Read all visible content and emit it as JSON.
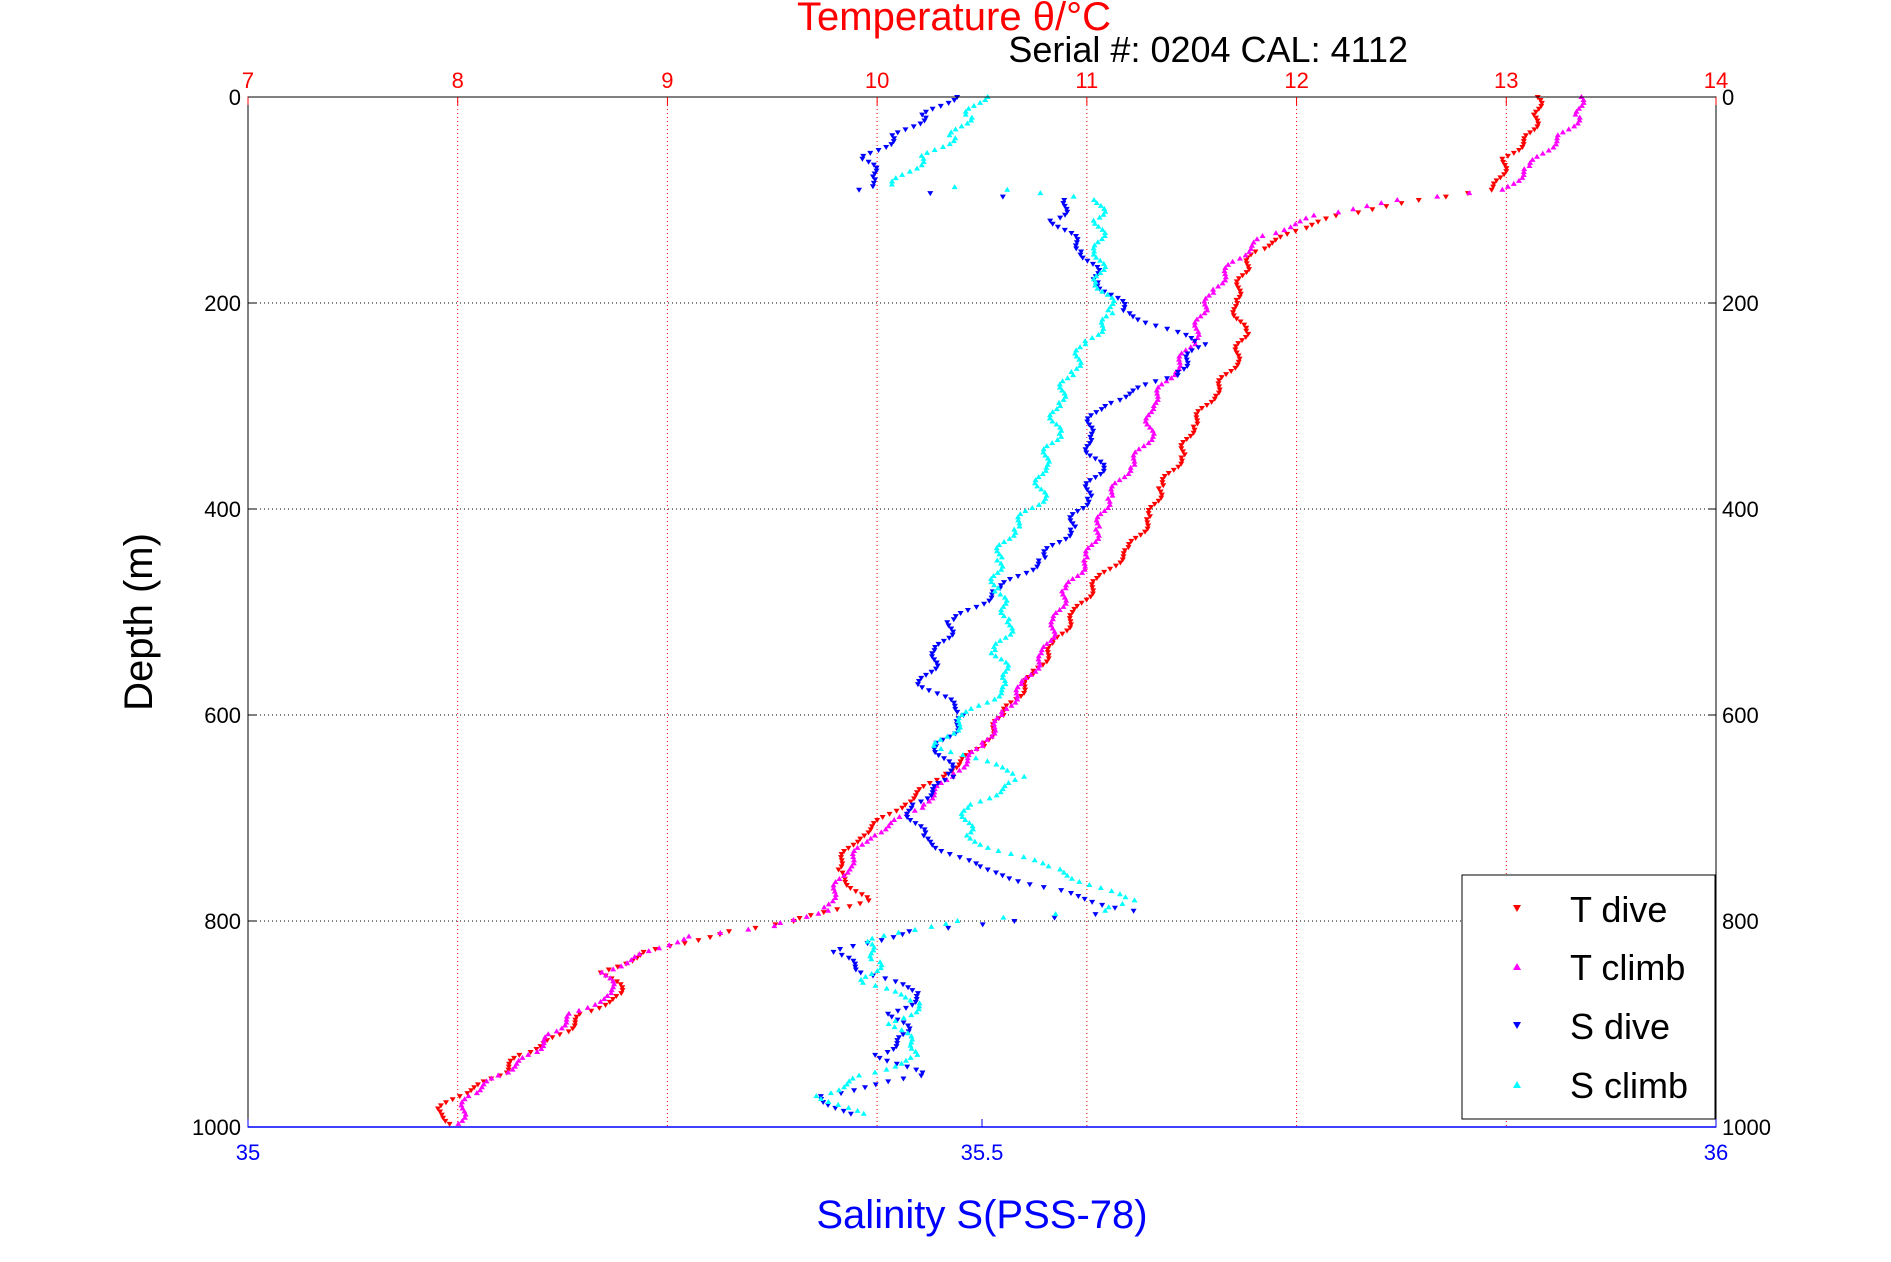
{
  "annotation": "Serial #: 0204  CAL: 4112",
  "chart_data": {
    "type": "scatter",
    "top_axis": {
      "label": "Temperature θ/°C",
      "min": 7,
      "max": 14,
      "ticks": [
        "7",
        "8",
        "9",
        "10",
        "11",
        "12",
        "13",
        "14"
      ],
      "color": "#ff0000"
    },
    "bottom_axis": {
      "label": "Salinity S(PSS-78)",
      "min": 35,
      "max": 36,
      "ticks": [
        "35",
        "35.5",
        "36"
      ],
      "color": "#0000ff"
    },
    "y_axis": {
      "label": "Depth (m)",
      "min": 0,
      "max": 1000,
      "reversed": true,
      "ticks": [
        "0",
        "200",
        "400",
        "600",
        "800",
        "1000"
      ]
    },
    "grid": true,
    "legend_position": "bottom-right",
    "series": [
      {
        "name": "T dive",
        "axis": "top",
        "color": "#ff0000",
        "marker": "triangle-down",
        "points": [
          [
            13.15,
            0
          ],
          [
            13.15,
            20
          ],
          [
            13.1,
            40
          ],
          [
            13.0,
            60
          ],
          [
            12.95,
            90
          ],
          [
            12.6,
            100
          ],
          [
            12.2,
            115
          ],
          [
            12.0,
            130
          ],
          [
            11.8,
            150
          ],
          [
            11.75,
            170
          ],
          [
            11.7,
            200
          ],
          [
            11.75,
            230
          ],
          [
            11.7,
            260
          ],
          [
            11.6,
            290
          ],
          [
            11.5,
            320
          ],
          [
            11.45,
            350
          ],
          [
            11.35,
            380
          ],
          [
            11.3,
            410
          ],
          [
            11.2,
            440
          ],
          [
            11.05,
            470
          ],
          [
            10.95,
            500
          ],
          [
            10.85,
            530
          ],
          [
            10.75,
            560
          ],
          [
            10.6,
            600
          ],
          [
            10.5,
            630
          ],
          [
            10.3,
            660
          ],
          [
            10.1,
            690
          ],
          [
            9.9,
            720
          ],
          [
            9.8,
            750
          ],
          [
            9.95,
            780
          ],
          [
            9.6,
            800
          ],
          [
            9.3,
            810
          ],
          [
            8.9,
            830
          ],
          [
            8.7,
            850
          ],
          [
            8.8,
            870
          ],
          [
            8.6,
            890
          ],
          [
            8.5,
            910
          ],
          [
            8.3,
            930
          ],
          [
            8.2,
            950
          ],
          [
            8.0,
            970
          ],
          [
            7.9,
            985
          ],
          [
            8.0,
            1000
          ]
        ]
      },
      {
        "name": "T climb",
        "axis": "top",
        "color": "#ff00ff",
        "marker": "triangle-up",
        "points": [
          [
            13.35,
            0
          ],
          [
            13.35,
            20
          ],
          [
            13.25,
            40
          ],
          [
            13.1,
            70
          ],
          [
            13.0,
            90
          ],
          [
            12.5,
            100
          ],
          [
            12.1,
            115
          ],
          [
            11.85,
            135
          ],
          [
            11.7,
            160
          ],
          [
            11.6,
            190
          ],
          [
            11.55,
            210
          ],
          [
            11.5,
            240
          ],
          [
            11.4,
            270
          ],
          [
            11.3,
            300
          ],
          [
            11.3,
            330
          ],
          [
            11.2,
            360
          ],
          [
            11.1,
            390
          ],
          [
            11.05,
            420
          ],
          [
            11.0,
            450
          ],
          [
            10.9,
            480
          ],
          [
            10.85,
            510
          ],
          [
            10.8,
            540
          ],
          [
            10.7,
            570
          ],
          [
            10.6,
            600
          ],
          [
            10.5,
            630
          ],
          [
            10.35,
            660
          ],
          [
            10.2,
            690
          ],
          [
            9.95,
            720
          ],
          [
            9.85,
            750
          ],
          [
            9.75,
            790
          ],
          [
            9.5,
            805
          ],
          [
            9.1,
            815
          ],
          [
            8.85,
            835
          ],
          [
            8.7,
            850
          ],
          [
            8.75,
            870
          ],
          [
            8.55,
            890
          ],
          [
            8.45,
            910
          ],
          [
            8.35,
            930
          ],
          [
            8.2,
            950
          ],
          [
            8.05,
            970
          ],
          [
            8.0,
            1000
          ]
        ]
      },
      {
        "name": "S dive",
        "axis": "bottom",
        "color": "#0000ff",
        "marker": "triangle-down",
        "points": [
          [
            35.48,
            0
          ],
          [
            35.46,
            20
          ],
          [
            35.44,
            40
          ],
          [
            35.42,
            60
          ],
          [
            35.43,
            80
          ],
          [
            35.42,
            90
          ],
          [
            35.56,
            100
          ],
          [
            35.55,
            120
          ],
          [
            35.57,
            150
          ],
          [
            35.58,
            180
          ],
          [
            35.6,
            210
          ],
          [
            35.65,
            240
          ],
          [
            35.63,
            270
          ],
          [
            35.58,
            300
          ],
          [
            35.57,
            330
          ],
          [
            35.58,
            360
          ],
          [
            35.57,
            390
          ],
          [
            35.56,
            420
          ],
          [
            35.54,
            450
          ],
          [
            35.51,
            480
          ],
          [
            35.48,
            510
          ],
          [
            35.47,
            540
          ],
          [
            35.46,
            570
          ],
          [
            35.49,
            600
          ],
          [
            35.47,
            630
          ],
          [
            35.48,
            660
          ],
          [
            35.45,
            690
          ],
          [
            35.46,
            720
          ],
          [
            35.5,
            750
          ],
          [
            35.55,
            770
          ],
          [
            35.6,
            790
          ],
          [
            35.52,
            800
          ],
          [
            35.45,
            810
          ],
          [
            35.4,
            830
          ],
          [
            35.42,
            850
          ],
          [
            35.46,
            870
          ],
          [
            35.44,
            890
          ],
          [
            35.45,
            910
          ],
          [
            35.43,
            930
          ],
          [
            35.46,
            950
          ],
          [
            35.39,
            970
          ],
          [
            35.41,
            990
          ]
        ]
      },
      {
        "name": "S climb",
        "axis": "bottom",
        "color": "#00ffff",
        "marker": "triangle-up",
        "points": [
          [
            35.5,
            0
          ],
          [
            35.49,
            20
          ],
          [
            35.48,
            40
          ],
          [
            35.46,
            60
          ],
          [
            35.44,
            85
          ],
          [
            35.52,
            90
          ],
          [
            35.58,
            100
          ],
          [
            35.58,
            120
          ],
          [
            35.58,
            150
          ],
          [
            35.58,
            180
          ],
          [
            35.59,
            210
          ],
          [
            35.57,
            240
          ],
          [
            35.56,
            270
          ],
          [
            35.55,
            300
          ],
          [
            35.55,
            330
          ],
          [
            35.54,
            360
          ],
          [
            35.54,
            390
          ],
          [
            35.52,
            420
          ],
          [
            35.51,
            450
          ],
          [
            35.51,
            480
          ],
          [
            35.52,
            510
          ],
          [
            35.51,
            540
          ],
          [
            35.52,
            570
          ],
          [
            35.49,
            600
          ],
          [
            35.47,
            630
          ],
          [
            35.53,
            660
          ],
          [
            35.49,
            690
          ],
          [
            35.49,
            720
          ],
          [
            35.55,
            750
          ],
          [
            35.6,
            780
          ],
          [
            35.58,
            790
          ],
          [
            35.48,
            800
          ],
          [
            35.42,
            820
          ],
          [
            35.43,
            840
          ],
          [
            35.42,
            860
          ],
          [
            35.46,
            880
          ],
          [
            35.44,
            900
          ],
          [
            35.46,
            930
          ],
          [
            35.42,
            950
          ],
          [
            35.39,
            970
          ],
          [
            35.42,
            990
          ]
        ]
      }
    ]
  }
}
